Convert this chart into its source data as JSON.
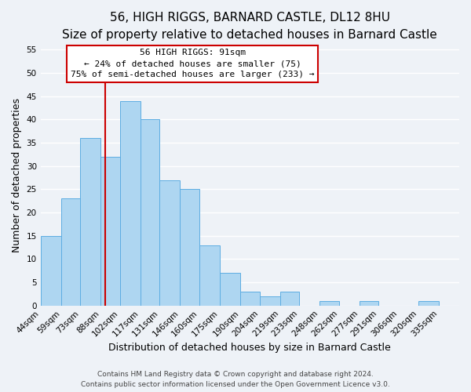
{
  "title": "56, HIGH RIGGS, BARNARD CASTLE, DL12 8HU",
  "subtitle": "Size of property relative to detached houses in Barnard Castle",
  "xlabel": "Distribution of detached houses by size in Barnard Castle",
  "ylabel": "Number of detached properties",
  "bin_labels": [
    "44sqm",
    "59sqm",
    "73sqm",
    "88sqm",
    "102sqm",
    "117sqm",
    "131sqm",
    "146sqm",
    "160sqm",
    "175sqm",
    "190sqm",
    "204sqm",
    "219sqm",
    "233sqm",
    "248sqm",
    "262sqm",
    "277sqm",
    "291sqm",
    "306sqm",
    "320sqm",
    "335sqm"
  ],
  "bin_edges": [
    44,
    59,
    73,
    88,
    102,
    117,
    131,
    146,
    160,
    175,
    190,
    204,
    219,
    233,
    248,
    262,
    277,
    291,
    306,
    320,
    335,
    350
  ],
  "counts": [
    15,
    23,
    36,
    32,
    44,
    40,
    27,
    25,
    13,
    7,
    3,
    2,
    3,
    0,
    1,
    0,
    1,
    0,
    0,
    1,
    0
  ],
  "bar_color": "#aed6f1",
  "bar_edge_color": "#5dade2",
  "property_line_x": 91,
  "property_line_color": "#cc0000",
  "ylim": [
    0,
    56
  ],
  "yticks": [
    0,
    5,
    10,
    15,
    20,
    25,
    30,
    35,
    40,
    45,
    50,
    55
  ],
  "annotation_title": "56 HIGH RIGGS: 91sqm",
  "annotation_line1": "← 24% of detached houses are smaller (75)",
  "annotation_line2": "75% of semi-detached houses are larger (233) →",
  "annotation_box_color": "#ffffff",
  "annotation_box_edge": "#cc0000",
  "footer1": "Contains HM Land Registry data © Crown copyright and database right 2024.",
  "footer2": "Contains public sector information licensed under the Open Government Licence v3.0.",
  "background_color": "#eef2f7",
  "grid_color": "#ffffff",
  "title_fontsize": 11,
  "subtitle_fontsize": 9,
  "axis_label_fontsize": 9,
  "tick_fontsize": 7.5,
  "annotation_fontsize": 8,
  "footer_fontsize": 6.5
}
